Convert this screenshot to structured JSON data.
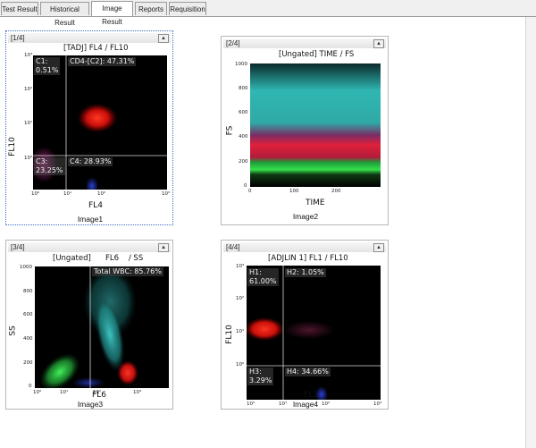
{
  "tabs": [
    {
      "label": "Test Result",
      "active": false
    },
    {
      "label": "Historical Result",
      "active": false
    },
    {
      "label": "Image Result",
      "active": true
    },
    {
      "label": "Reports",
      "active": false
    },
    {
      "label": "Requisition",
      "active": false
    }
  ],
  "panels": {
    "p1": {
      "index": "[1/4]",
      "title": "[TADJ]  FL4  / FL10",
      "caption": "Image1",
      "xlabel": "FL4",
      "ylabel": "FL10",
      "yticks": [
        "10³",
        "10²",
        "10¹",
        "10⁰"
      ],
      "xticks": [
        "10⁰",
        "10¹",
        "10²",
        "10³"
      ],
      "quadrants": {
        "c1": "C1:\n0.51%",
        "c2": "CD4-[C2]: 47.31%",
        "c3": "C3:\n23.25%",
        "c4": "C4: 28.93%"
      }
    },
    "p2": {
      "index": "[2/4]",
      "title": "[Ungated]  TIME / FS",
      "caption": "Image2",
      "xlabel": "TIME",
      "ylabel": "FS",
      "yticks": [
        "1000",
        "800",
        "600",
        "400",
        "200",
        "0"
      ],
      "xticks": [
        "0",
        "100",
        "200"
      ]
    },
    "p3": {
      "index": "[3/4]",
      "title": "[Ungated]      FL6    / SS",
      "caption": "Image3",
      "xlabel": "FL6",
      "ylabel": "SS",
      "yticks": [
        "1000",
        "800",
        "600",
        "400",
        "200",
        "0"
      ],
      "xticks": [
        "10⁰",
        "10¹",
        "10²",
        "10³"
      ],
      "gate_label": "Total WBC: 85.76%"
    },
    "p4": {
      "index": "[4/4]",
      "title": "[ADJLIN 1]  FL1  / FL10",
      "caption": "Image4",
      "xlabel": "FL1",
      "ylabel": "FL10",
      "yticks": [
        "10³",
        "10²",
        "10¹",
        "10⁰"
      ],
      "xticks": [
        "10⁰",
        "10¹",
        "10²",
        "10³"
      ],
      "quadrants": {
        "h1": "H1:\n61.00%",
        "h2": "H2: 1.05%",
        "h3": "H3:\n3.29%",
        "h4": "H4: 34.66%"
      }
    }
  },
  "icons": {
    "collapse": "chevron-up-icon"
  },
  "colors": {
    "cluster_red": "#ff2a1a",
    "cluster_cyan": "#2fb7b3",
    "cluster_green": "#33e04a",
    "cluster_blue": "#2b3fd6",
    "cluster_magenta": "#d23fa0",
    "gate_line": "#d8d8d8"
  }
}
